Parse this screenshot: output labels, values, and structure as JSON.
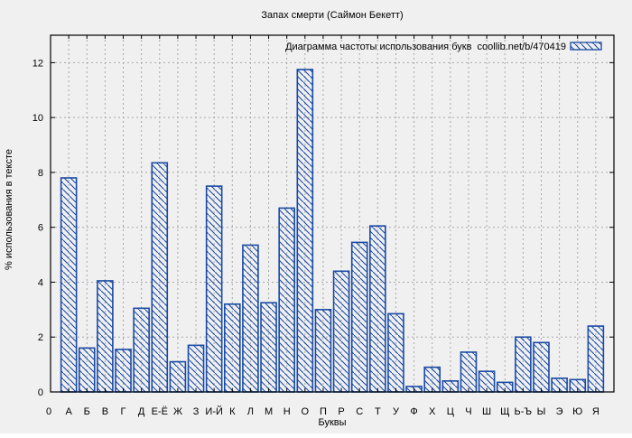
{
  "window": {
    "title": "Запах смерти (Саймон Бекетт)"
  },
  "chart_data": {
    "type": "bar",
    "title": "Запах смерти (Саймон Бекетт)",
    "legend": {
      "label": "Диаграмма частоты использования букв  coollib.net/b/470419",
      "position": "top-right-inside",
      "swatch": "blue-hatched-rectangle"
    },
    "xlabel": "Буквы",
    "ylabel": "% использования в тексте",
    "x_origin_label": "0",
    "categories": [
      "А",
      "Б",
      "В",
      "Г",
      "Д",
      "Е-Ё",
      "Ж",
      "З",
      "И-Й",
      "К",
      "Л",
      "М",
      "Н",
      "О",
      "П",
      "Р",
      "С",
      "Т",
      "У",
      "Ф",
      "Х",
      "Ц",
      "Ч",
      "Ш",
      "Щ",
      "Ь-Ъ",
      "Ы",
      "Э",
      "Ю",
      "Я"
    ],
    "values": [
      7.8,
      1.6,
      4.05,
      1.55,
      3.05,
      8.35,
      1.1,
      1.7,
      7.5,
      3.2,
      5.35,
      3.25,
      6.7,
      11.75,
      3.0,
      4.4,
      5.45,
      6.05,
      2.85,
      0.2,
      0.9,
      0.4,
      1.45,
      0.75,
      0.35,
      2.0,
      1.8,
      0.5,
      0.45,
      2.4
    ],
    "y_ticks": [
      0,
      2,
      4,
      6,
      8,
      10,
      12
    ],
    "ylim": [
      0,
      13
    ],
    "grid": true,
    "bar_style": "hatched-diagonal",
    "colors": {
      "bar": "#1a4aa5",
      "grid": "#a8a8a8",
      "frame": "#000000",
      "background": "#f0f0f0"
    }
  }
}
